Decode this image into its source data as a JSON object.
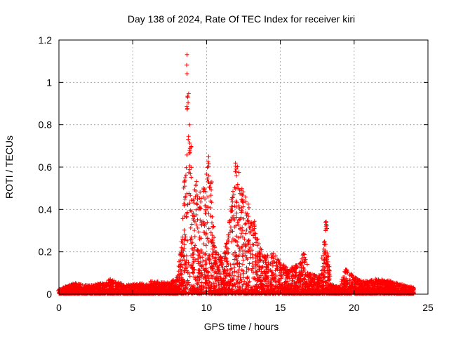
{
  "chart_data": {
    "type": "scatter",
    "title": "Day 138 of 2024, Rate Of TEC Index for receiver kiri",
    "xlabel": "GPS time / hours",
    "ylabel": "ROTI / TECUs",
    "xlim": [
      0,
      25
    ],
    "ylim": [
      0,
      1.2
    ],
    "x_ticks": [
      0,
      5,
      10,
      15,
      20,
      25
    ],
    "x_tick_labels": [
      "0",
      "5",
      "10",
      "15",
      "20",
      "25"
    ],
    "y_ticks": [
      0,
      0.2,
      0.4,
      0.6,
      0.8,
      1.0,
      1.2
    ],
    "y_tick_labels": [
      "0",
      "0.2",
      "0.4",
      "0.6",
      "0.8",
      "1",
      "1.2"
    ],
    "grid": true,
    "marker": "+",
    "color": "#ff0000",
    "series": [
      {
        "name": "ROTI",
        "description_envelope": "approximate upper envelope of the dense point cloud (hour, max ROTI)",
        "envelope": [
          [
            0.0,
            0.02
          ],
          [
            1.0,
            0.05
          ],
          [
            2.0,
            0.04
          ],
          [
            3.0,
            0.05
          ],
          [
            3.5,
            0.07
          ],
          [
            4.5,
            0.04
          ],
          [
            5.5,
            0.05
          ],
          [
            6.5,
            0.06
          ],
          [
            7.5,
            0.05
          ],
          [
            8.0,
            0.08
          ],
          [
            8.3,
            0.25
          ],
          [
            8.5,
            0.55
          ],
          [
            8.7,
            1.16
          ],
          [
            8.9,
            0.72
          ],
          [
            9.1,
            0.45
          ],
          [
            9.3,
            0.55
          ],
          [
            9.6,
            0.5
          ],
          [
            9.9,
            0.5
          ],
          [
            10.1,
            0.69
          ],
          [
            10.3,
            0.55
          ],
          [
            10.6,
            0.2
          ],
          [
            11.0,
            0.18
          ],
          [
            11.4,
            0.25
          ],
          [
            11.7,
            0.45
          ],
          [
            12.0,
            0.64
          ],
          [
            12.4,
            0.5
          ],
          [
            12.8,
            0.43
          ],
          [
            13.2,
            0.35
          ],
          [
            13.6,
            0.22
          ],
          [
            14.0,
            0.18
          ],
          [
            14.5,
            0.2
          ],
          [
            15.0,
            0.15
          ],
          [
            15.5,
            0.12
          ],
          [
            16.0,
            0.14
          ],
          [
            16.6,
            0.19
          ],
          [
            17.0,
            0.1
          ],
          [
            17.6,
            0.08
          ],
          [
            18.0,
            0.25
          ],
          [
            18.1,
            0.37
          ],
          [
            18.4,
            0.05
          ],
          [
            19.0,
            0.03
          ],
          [
            19.4,
            0.12
          ],
          [
            20.0,
            0.08
          ],
          [
            20.5,
            0.06
          ],
          [
            21.5,
            0.07
          ],
          [
            22.5,
            0.06
          ],
          [
            23.5,
            0.04
          ],
          [
            24.0,
            0.03
          ]
        ]
      }
    ]
  }
}
